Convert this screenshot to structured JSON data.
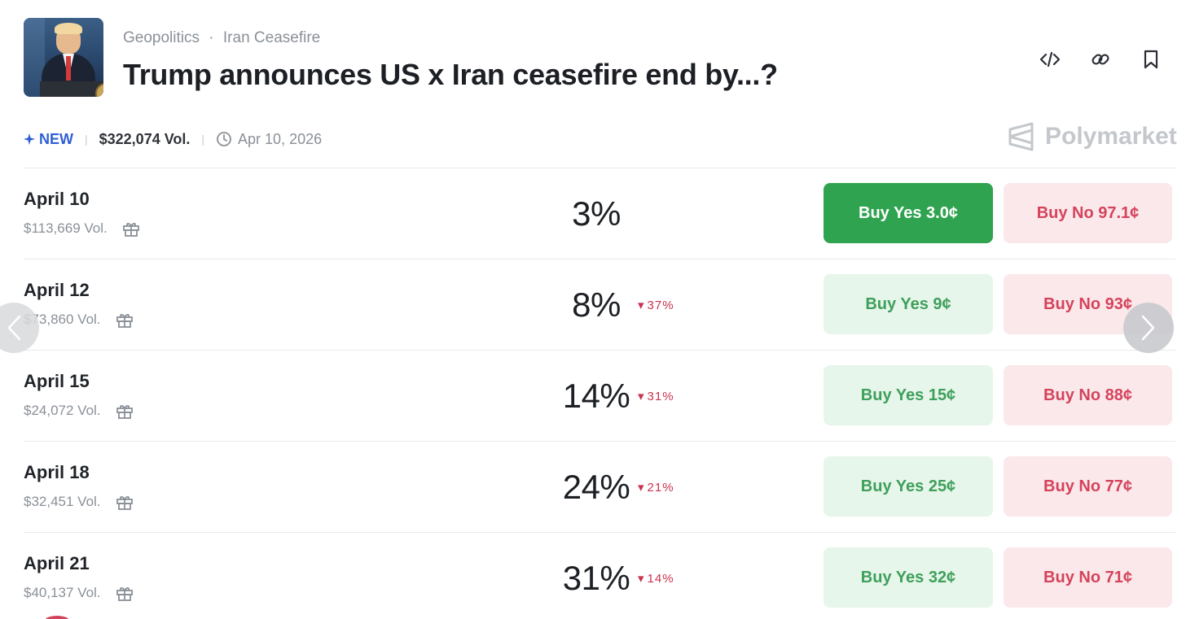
{
  "header": {
    "breadcrumb": [
      "Geopolitics",
      "Iran Ceasefire"
    ],
    "breadcrumb_separator": "·",
    "title": "Trump announces US x Iran ceasefire end by...?"
  },
  "toolbar": {
    "icons": [
      "embed-code-icon",
      "link-icon",
      "bookmark-icon"
    ]
  },
  "meta": {
    "badge": "NEW",
    "volume": "$322,074 Vol.",
    "date": "Apr 10, 2026"
  },
  "brand": {
    "name": "Polymarket"
  },
  "markets": [
    {
      "label": "April 10",
      "volume": "$113,669 Vol.",
      "percent": "3%",
      "change": "",
      "buy_yes": "Buy Yes 3.0¢",
      "buy_no": "Buy No 97.1¢",
      "yes_selected": true
    },
    {
      "label": "April 12",
      "volume": "$73,860 Vol.",
      "percent": "8%",
      "change": "37%",
      "buy_yes": "Buy Yes 9¢",
      "buy_no": "Buy No 93¢",
      "yes_selected": false
    },
    {
      "label": "April 15",
      "volume": "$24,072 Vol.",
      "percent": "14%",
      "change": "31%",
      "buy_yes": "Buy Yes 15¢",
      "buy_no": "Buy No 88¢",
      "yes_selected": false
    },
    {
      "label": "April 18",
      "volume": "$32,451 Vol.",
      "percent": "24%",
      "change": "21%",
      "buy_yes": "Buy Yes 25¢",
      "buy_no": "Buy No 77¢",
      "yes_selected": false
    },
    {
      "label": "April 21",
      "volume": "$40,137 Vol.",
      "percent": "31%",
      "change": "14%",
      "buy_yes": "Buy Yes 32¢",
      "buy_no": "Buy No 71¢",
      "yes_selected": false
    }
  ],
  "colors": {
    "accent_blue": "#2f5fd6",
    "yes_green": "#2fa34f",
    "no_red": "#d4435c",
    "muted_text": "#8a9098"
  }
}
